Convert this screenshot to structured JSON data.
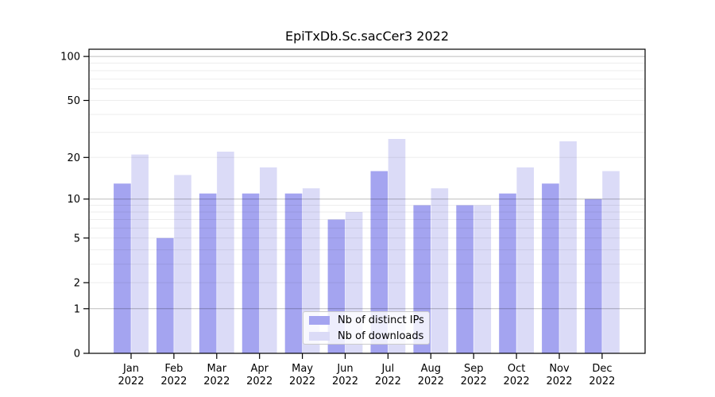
{
  "chart_data": {
    "type": "bar",
    "title": "EpiTxDb.Sc.sacCer3 2022",
    "categories": [
      "Jan",
      "Feb",
      "Mar",
      "Apr",
      "May",
      "Jun",
      "Jul",
      "Aug",
      "Sep",
      "Oct",
      "Nov",
      "Dec"
    ],
    "category_year": "2022",
    "series": [
      {
        "name": "Nb of distinct IPs",
        "color": "#a4a4f0",
        "values": [
          13,
          5,
          11,
          11,
          11,
          7,
          16,
          9,
          9,
          11,
          13,
          10
        ]
      },
      {
        "name": "Nb of downloads",
        "color": "#dbdbf7",
        "values": [
          21,
          15,
          22,
          17,
          12,
          8,
          27,
          12,
          9,
          17,
          26,
          16
        ]
      }
    ],
    "y_axis": {
      "scale": "log1p",
      "ticks": [
        0,
        1,
        2,
        5,
        10,
        20,
        50,
        100
      ],
      "major_gridlines": [
        1,
        10,
        100
      ],
      "minor_gridlines": [
        2,
        3,
        4,
        5,
        6,
        7,
        8,
        9,
        20,
        30,
        40,
        50,
        60,
        70,
        80,
        90
      ],
      "ylim": [
        0,
        112
      ]
    },
    "xlabel": "",
    "ylabel": "",
    "grid": true,
    "legend_position": "inside-bottom-center"
  }
}
